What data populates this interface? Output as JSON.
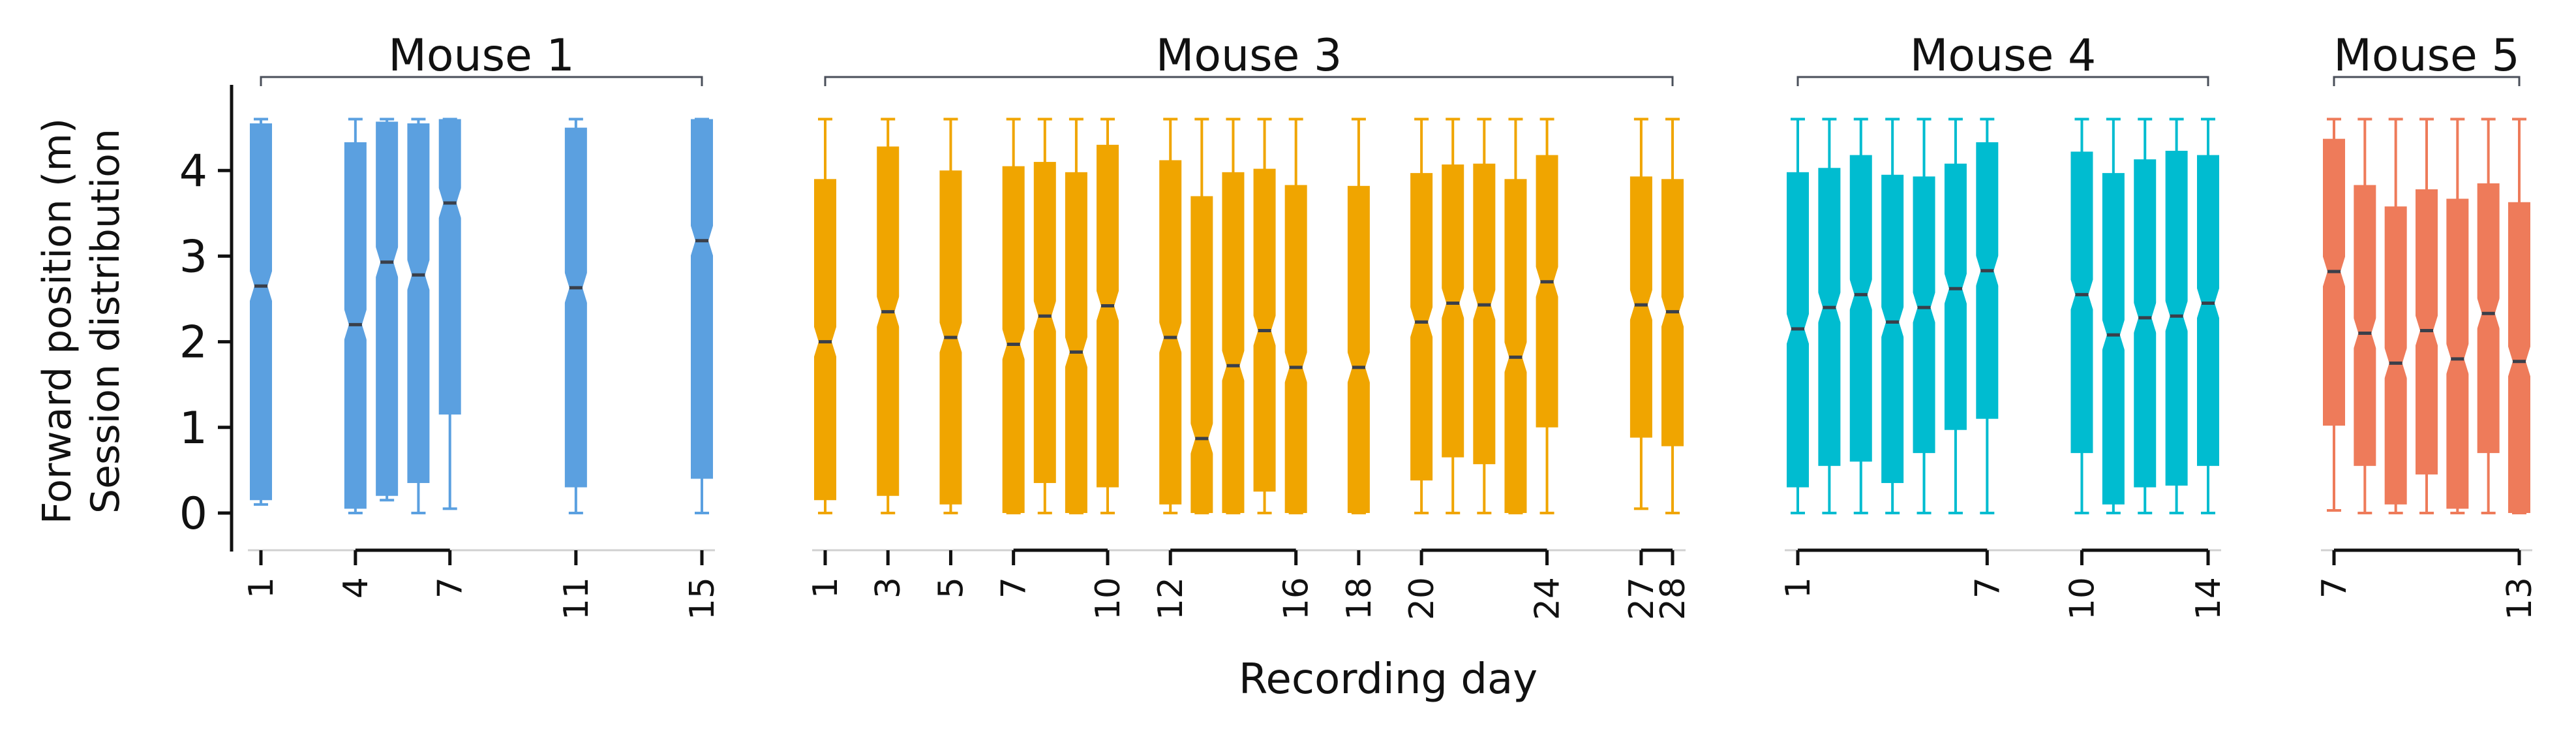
{
  "chart_data": {
    "type": "box",
    "ylabel_lines": [
      "Forward position (m)",
      "Session distribution"
    ],
    "xlabel": "Recording day",
    "ylim": [
      -0.45,
      5.0
    ],
    "yticks": [
      0,
      1,
      2,
      3,
      4
    ],
    "grid": false,
    "groups": [
      {
        "name": "Mouse 1",
        "color": "#5ba0e0",
        "day_range": [
          1,
          15
        ],
        "tick_labels": [
          1,
          4,
          7,
          11,
          15
        ],
        "spans": [
          [
            4,
            7
          ]
        ],
        "boxes": [
          {
            "day": 1,
            "q1": 0.15,
            "median": 2.65,
            "q3": 4.55,
            "lo": 0.1,
            "hi": 4.6
          },
          {
            "day": 4,
            "q1": 0.05,
            "median": 2.2,
            "q3": 4.33,
            "lo": 0.0,
            "hi": 4.6
          },
          {
            "day": 5,
            "q1": 0.2,
            "median": 2.93,
            "q3": 4.57,
            "lo": 0.15,
            "hi": 4.6
          },
          {
            "day": 6,
            "q1": 0.35,
            "median": 2.78,
            "q3": 4.55,
            "lo": 0.0,
            "hi": 4.6
          },
          {
            "day": 7,
            "q1": 1.15,
            "median": 3.62,
            "q3": 4.6,
            "lo": 0.05,
            "hi": 4.6
          },
          {
            "day": 11,
            "q1": 0.3,
            "median": 2.63,
            "q3": 4.5,
            "lo": 0.0,
            "hi": 4.6
          },
          {
            "day": 15,
            "q1": 0.4,
            "median": 3.18,
            "q3": 4.6,
            "lo": 0.0,
            "hi": 4.6
          }
        ]
      },
      {
        "name": "Mouse 3",
        "color": "#f0a500",
        "day_range": [
          1,
          28
        ],
        "tick_labels": [
          1,
          3,
          5,
          7,
          10,
          12,
          16,
          18,
          20,
          24,
          27,
          28
        ],
        "spans": [
          [
            7,
            10
          ],
          [
            12,
            16
          ],
          [
            20,
            24
          ],
          [
            27,
            28
          ]
        ],
        "boxes": [
          {
            "day": 1,
            "q1": 0.15,
            "median": 2.0,
            "q3": 3.9,
            "lo": 0.0,
            "hi": 4.6
          },
          {
            "day": 3,
            "q1": 0.2,
            "median": 2.35,
            "q3": 4.28,
            "lo": 0.0,
            "hi": 4.6
          },
          {
            "day": 5,
            "q1": 0.1,
            "median": 2.05,
            "q3": 4.0,
            "lo": 0.0,
            "hi": 4.6
          },
          {
            "day": 7,
            "q1": 0.0,
            "median": 1.97,
            "q3": 4.05,
            "lo": 0.0,
            "hi": 4.6
          },
          {
            "day": 8,
            "q1": 0.35,
            "median": 2.3,
            "q3": 4.1,
            "lo": 0.0,
            "hi": 4.6
          },
          {
            "day": 9,
            "q1": 0.0,
            "median": 1.88,
            "q3": 3.98,
            "lo": 0.0,
            "hi": 4.6
          },
          {
            "day": 10,
            "q1": 0.3,
            "median": 2.42,
            "q3": 4.3,
            "lo": 0.0,
            "hi": 4.6
          },
          {
            "day": 12,
            "q1": 0.1,
            "median": 2.05,
            "q3": 4.12,
            "lo": 0.0,
            "hi": 4.6
          },
          {
            "day": 13,
            "q1": 0.0,
            "median": 0.87,
            "q3": 3.7,
            "lo": 0.0,
            "hi": 4.6
          },
          {
            "day": 14,
            "q1": 0.0,
            "median": 1.72,
            "q3": 3.98,
            "lo": 0.0,
            "hi": 4.6
          },
          {
            "day": 15,
            "q1": 0.25,
            "median": 2.13,
            "q3": 4.02,
            "lo": 0.0,
            "hi": 4.6
          },
          {
            "day": 16,
            "q1": 0.0,
            "median": 1.7,
            "q3": 3.83,
            "lo": 0.0,
            "hi": 4.6
          },
          {
            "day": 18,
            "q1": 0.0,
            "median": 1.7,
            "q3": 3.82,
            "lo": 0.0,
            "hi": 4.6
          },
          {
            "day": 20,
            "q1": 0.38,
            "median": 2.23,
            "q3": 3.97,
            "lo": 0.0,
            "hi": 4.6
          },
          {
            "day": 21,
            "q1": 0.65,
            "median": 2.45,
            "q3": 4.07,
            "lo": 0.0,
            "hi": 4.6
          },
          {
            "day": 22,
            "q1": 0.57,
            "median": 2.43,
            "q3": 4.08,
            "lo": 0.0,
            "hi": 4.6
          },
          {
            "day": 23,
            "q1": 0.0,
            "median": 1.82,
            "q3": 3.9,
            "lo": 0.0,
            "hi": 4.6
          },
          {
            "day": 24,
            "q1": 1.0,
            "median": 2.7,
            "q3": 4.18,
            "lo": 0.0,
            "hi": 4.6
          },
          {
            "day": 27,
            "q1": 0.88,
            "median": 2.43,
            "q3": 3.93,
            "lo": 0.05,
            "hi": 4.6
          },
          {
            "day": 28,
            "q1": 0.78,
            "median": 2.35,
            "q3": 3.9,
            "lo": 0.0,
            "hi": 4.6
          }
        ]
      },
      {
        "name": "Mouse 4",
        "color": "#00bcd0",
        "day_range": [
          1,
          14
        ],
        "tick_labels": [
          1,
          7,
          10,
          14
        ],
        "spans": [
          [
            1,
            7
          ],
          [
            10,
            14
          ]
        ],
        "boxes": [
          {
            "day": 1,
            "q1": 0.3,
            "median": 2.15,
            "q3": 3.98,
            "lo": 0.0,
            "hi": 4.6
          },
          {
            "day": 2,
            "q1": 0.55,
            "median": 2.4,
            "q3": 4.03,
            "lo": 0.0,
            "hi": 4.6
          },
          {
            "day": 3,
            "q1": 0.6,
            "median": 2.55,
            "q3": 4.18,
            "lo": 0.0,
            "hi": 4.6
          },
          {
            "day": 4,
            "q1": 0.35,
            "median": 2.23,
            "q3": 3.95,
            "lo": 0.0,
            "hi": 4.6
          },
          {
            "day": 5,
            "q1": 0.7,
            "median": 2.4,
            "q3": 3.93,
            "lo": 0.0,
            "hi": 4.6
          },
          {
            "day": 6,
            "q1": 0.97,
            "median": 2.62,
            "q3": 4.08,
            "lo": 0.0,
            "hi": 4.6
          },
          {
            "day": 7,
            "q1": 1.1,
            "median": 2.83,
            "q3": 4.33,
            "lo": 0.0,
            "hi": 4.6
          },
          {
            "day": 10,
            "q1": 0.7,
            "median": 2.55,
            "q3": 4.22,
            "lo": 0.0,
            "hi": 4.6
          },
          {
            "day": 11,
            "q1": 0.1,
            "median": 2.08,
            "q3": 3.97,
            "lo": 0.0,
            "hi": 4.6
          },
          {
            "day": 12,
            "q1": 0.3,
            "median": 2.28,
            "q3": 4.13,
            "lo": 0.0,
            "hi": 4.6
          },
          {
            "day": 13,
            "q1": 0.32,
            "median": 2.3,
            "q3": 4.23,
            "lo": 0.0,
            "hi": 4.6
          },
          {
            "day": 14,
            "q1": 0.55,
            "median": 2.45,
            "q3": 4.18,
            "lo": 0.0,
            "hi": 4.6
          }
        ]
      },
      {
        "name": "Mouse 5",
        "color": "#ee7b5a",
        "day_range": [
          7,
          13
        ],
        "tick_labels": [
          7,
          13
        ],
        "spans": [
          [
            7,
            13
          ]
        ],
        "boxes": [
          {
            "day": 7,
            "q1": 1.02,
            "median": 2.82,
            "q3": 4.37,
            "lo": 0.03,
            "hi": 4.6
          },
          {
            "day": 8,
            "q1": 0.55,
            "median": 2.1,
            "q3": 3.83,
            "lo": 0.0,
            "hi": 4.6
          },
          {
            "day": 9,
            "q1": 0.1,
            "median": 1.75,
            "q3": 3.58,
            "lo": 0.0,
            "hi": 4.6
          },
          {
            "day": 10,
            "q1": 0.45,
            "median": 2.13,
            "q3": 3.78,
            "lo": 0.0,
            "hi": 4.6
          },
          {
            "day": 11,
            "q1": 0.05,
            "median": 1.8,
            "q3": 3.67,
            "lo": 0.0,
            "hi": 4.6
          },
          {
            "day": 12,
            "q1": 0.7,
            "median": 2.33,
            "q3": 3.85,
            "lo": 0.0,
            "hi": 4.6
          },
          {
            "day": 13,
            "q1": 0.0,
            "median": 1.77,
            "q3": 3.63,
            "lo": 0.0,
            "hi": 4.6
          }
        ]
      }
    ]
  }
}
